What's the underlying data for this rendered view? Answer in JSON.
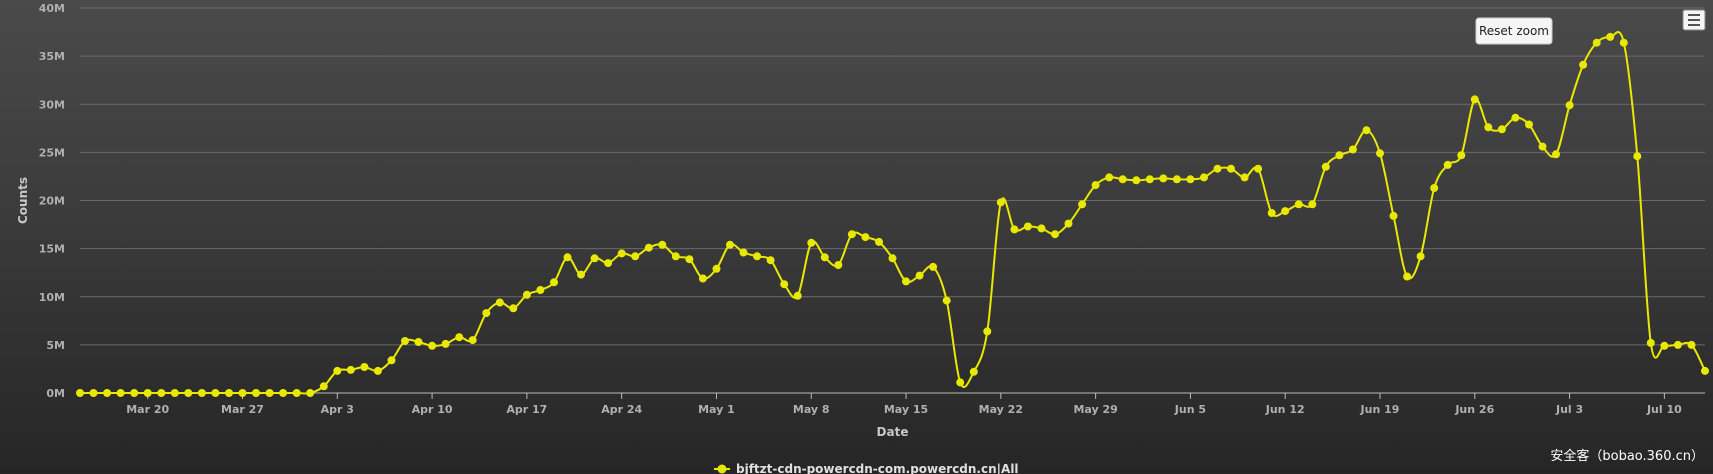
{
  "chart_data": {
    "type": "line",
    "title": "",
    "xlabel": "Date",
    "ylabel": "Counts",
    "x_start": "Mar 15",
    "x_end": "Jul 11",
    "x_ticks": [
      "Mar 20",
      "Mar 27",
      "Apr 3",
      "Apr 10",
      "Apr 17",
      "Apr 24",
      "May 1",
      "May 8",
      "May 15",
      "May 22",
      "May 29",
      "Jun 5",
      "Jun 12",
      "Jun 19",
      "Jun 26",
      "Jul 3",
      "Jul 10"
    ],
    "y_ticks": [
      "0M",
      "5M",
      "10M",
      "15M",
      "20M",
      "25M",
      "30M",
      "35M",
      "40M"
    ],
    "ylim": [
      0,
      40
    ],
    "y_unit": "M",
    "grid": true,
    "legend_position": "bottom-center",
    "series": [
      {
        "name": "bjftzt-cdn-powercdn-com.powercdn.cn|All",
        "color": "#e8e800",
        "values": [
          0,
          0,
          0,
          0,
          0,
          0,
          0,
          0,
          0,
          0,
          0,
          0,
          0,
          0,
          0,
          0,
          0,
          0,
          0.7,
          2.3,
          2.4,
          2.7,
          2.3,
          3.4,
          5.4,
          5.3,
          4.9,
          5.1,
          5.8,
          5.5,
          8.3,
          9.4,
          8.8,
          10.2,
          10.7,
          11.5,
          14.1,
          12.3,
          14.0,
          13.5,
          14.5,
          14.2,
          15.1,
          15.4,
          14.2,
          13.9,
          11.9,
          12.9,
          15.4,
          14.6,
          14.2,
          13.8,
          11.3,
          10.1,
          15.6,
          14.1,
          13.3,
          16.5,
          16.2,
          15.7,
          14.0,
          11.6,
          12.2,
          13.1,
          9.6,
          1.1,
          2.2,
          6.4,
          19.8,
          17.0,
          17.3,
          17.1,
          16.5,
          17.6,
          19.6,
          21.6,
          22.4,
          22.2,
          22.1,
          22.2,
          22.3,
          22.2,
          22.2,
          22.4,
          23.3,
          23.3,
          22.4,
          23.3,
          18.7,
          18.9,
          19.6,
          19.6,
          23.5,
          24.7,
          25.3,
          27.3,
          24.9,
          18.4,
          12.1,
          14.2,
          21.3,
          23.7,
          24.7,
          30.5,
          27.6,
          27.4,
          28.6,
          27.9,
          25.6,
          24.8,
          29.9,
          34.1,
          36.4,
          37.0,
          36.4,
          24.6,
          5.2,
          4.9,
          5.0,
          5.0,
          2.3
        ]
      }
    ]
  },
  "ui": {
    "reset_zoom_label": "Reset zoom",
    "watermark": "安全客（bobao.360.cn）",
    "menu_icon": "hamburger-menu-icon"
  }
}
